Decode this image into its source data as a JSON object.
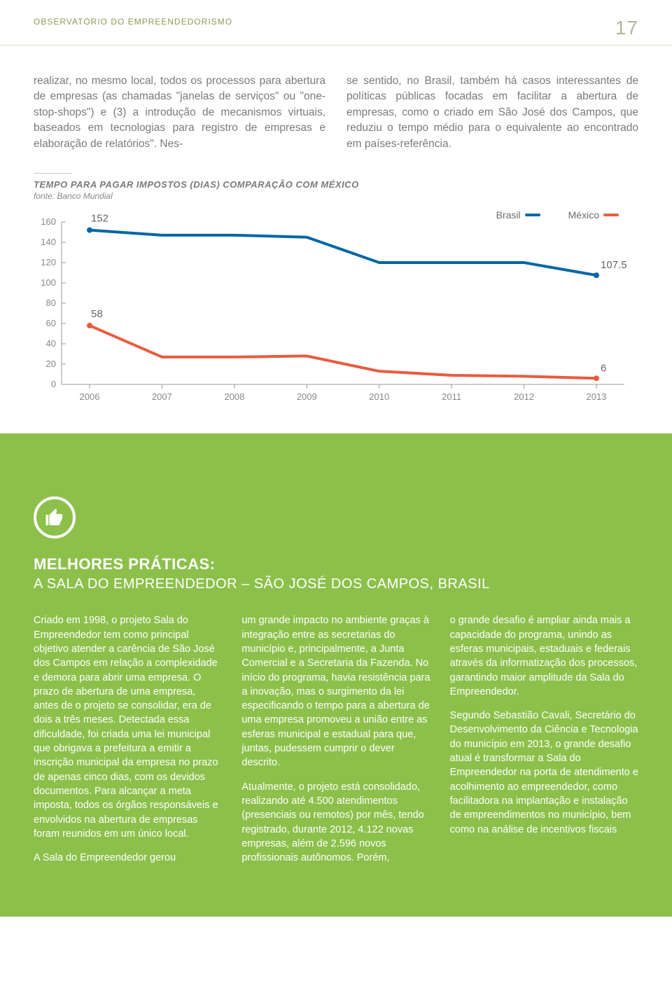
{
  "header": {
    "title": "OBSERVATÓRIO DO EMPREENDEDORISMO",
    "page_number": "17"
  },
  "intro": {
    "left": "realizar, no mesmo local, todos os processos para abertura de empresas (as chamadas \"janelas de serviços\" ou \"one-stop-shops\") e (3) a introdução de mecanismos virtuais, baseados em tecnologias para registro de empresas e elaboração de relatórios\". Nes-",
    "right": "se sentido, no Brasil, também há casos interessantes de políticas públicas focadas em facilitar a abertura de empresas, como o criado em São José dos Campos, que reduziu o tempo médio para o equivalente ao encontrado em países-referência."
  },
  "chart": {
    "title": "TEMPO PARA PAGAR IMPOSTOS (DIAS) COMPARAÇÃO COM MÉXICO",
    "source": "fonte: Banco Mundial",
    "type": "line",
    "x_labels": [
      "2006",
      "2007",
      "2008",
      "2009",
      "2010",
      "2011",
      "2012",
      "2013"
    ],
    "y_ticks": [
      0,
      20,
      40,
      60,
      80,
      100,
      120,
      140,
      160
    ],
    "ylim": [
      0,
      160
    ],
    "series": [
      {
        "name": "Brasil",
        "color": "#0066a6",
        "values": [
          152,
          147,
          147,
          145,
          120,
          120,
          120,
          107.5
        ],
        "label_start": "152",
        "label_end": "107.5"
      },
      {
        "name": "México",
        "color": "#e85c40",
        "values": [
          58,
          27,
          27,
          28,
          13,
          9,
          8,
          6
        ],
        "label_start": "58",
        "label_end": "6"
      }
    ],
    "line_width": 4,
    "grid_color": "#d0d0d0",
    "background_color": "#ffffff",
    "axis_color": "#999999",
    "label_fontsize": 14,
    "tick_fontsize": 13,
    "annotation_fontsize": 15
  },
  "green": {
    "heading": "MELHORES PRÁTICAS:",
    "subheading": "A SALA DO EMPREENDEDOR – SÃO JOSÉ DOS CAMPOS, BRASIL",
    "col1_p1": "Criado em 1998, o projeto Sala do Empreendedor tem como principal objetivo atender a carência de São José dos Campos em relação a complexidade e demora para abrir uma empresa. O prazo de abertura de uma empresa, antes de o projeto se consolidar, era de dois a três meses. Detectada essa dificuldade, foi criada uma lei municipal que obrigava a prefeitura a emitir a inscrição municipal da empresa no prazo de apenas cinco dias, com os devidos documentos. Para alcançar a meta imposta, todos os órgãos responsáveis e envolvidos na abertura de empresas foram reunidos em um único local.",
    "col1_p2": "A Sala do Empreendedor gerou",
    "col2_p1": "um grande impacto no ambiente graças à integração entre as secretarias do município e, principalmente, a Junta Comercial e a Secretaria da Fazenda. No início do programa, havia resistência para a inovação, mas o surgimento da lei especificando o tempo para a abertura de uma empresa promoveu a união entre as esferas municipal e estadual para que, juntas, pudessem cumprir o dever descrito.",
    "col2_p2": "Atualmente, o projeto está consolidado, realizando até 4.500 atendimentos (presenciais ou remotos) por mês, tendo registrado, durante 2012, 4.122 novas empresas, além de 2.596 novos profissionais autônomos. Porém,",
    "col3_p1": "o grande desafio é ampliar ainda mais a capacidade do programa, unindo as esferas municipais, estaduais e federais através da informatização dos processos, garantindo maior amplitude da Sala do Empreendedor.",
    "col3_p2": "Segundo Sebastião Cavali, Secretário do Desenvolvimento da Ciência e Tecnologia do município em 2013, o grande desafio atual é transformar a Sala do Empreendedor na porta de atendimento e acolhimento ao empreendedor, como facilitadora na implantação e instalação de empreendimentos no município, bem como na análise de incentivos fiscais"
  },
  "colors": {
    "green_bg": "#8cc04b",
    "header_text": "#8b9a56"
  }
}
